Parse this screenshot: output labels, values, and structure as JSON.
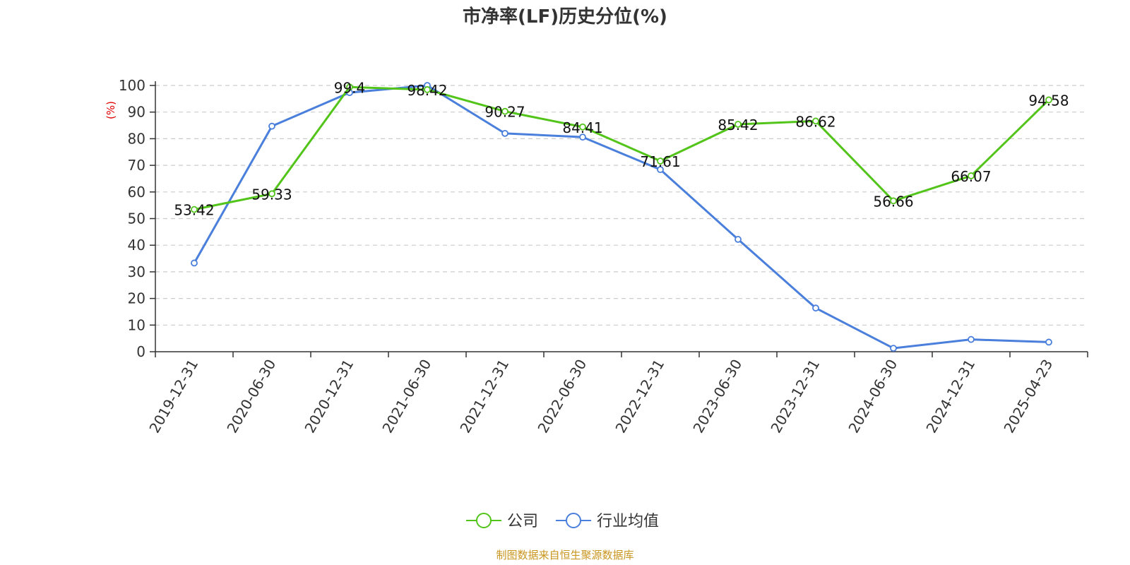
{
  "chart_data": {
    "type": "line",
    "title": "市净率(LF)历史分位(%)",
    "ylabel": "(%)",
    "ylim": [
      0,
      100
    ],
    "yticks": [
      0,
      10,
      20,
      30,
      40,
      50,
      60,
      70,
      80,
      90,
      100
    ],
    "categories": [
      "2019-12-31",
      "2020-06-30",
      "2020-12-31",
      "2021-06-30",
      "2021-12-31",
      "2022-06-30",
      "2022-12-31",
      "2023-06-30",
      "2023-12-31",
      "2024-06-30",
      "2024-12-31",
      "2025-04-23"
    ],
    "series": [
      {
        "name": "公司",
        "color": "#52c41a",
        "values": [
          53.42,
          59.33,
          99.4,
          98.42,
          90.27,
          84.41,
          71.61,
          85.42,
          86.62,
          56.66,
          66.07,
          94.58
        ],
        "labels": [
          "53.42",
          "59.33",
          "99.4",
          "98.42",
          "90.27",
          "84.41",
          "71.61",
          "85.42",
          "86.62",
          "56.66",
          "66.07",
          "94.58"
        ]
      },
      {
        "name": "行业均值",
        "color": "#4a7fdc",
        "values": [
          33.3,
          84.7,
          97.3,
          100,
          82.0,
          80.6,
          68.4,
          42.2,
          16.4,
          1.3,
          4.6,
          3.6
        ]
      }
    ],
    "grid": true,
    "legend_position": "bottom-center"
  },
  "footer": {
    "source": "制图数据来自恒生聚源数据库"
  },
  "colors": {
    "unit_label": "#e00000",
    "source_text": "#c8961e"
  }
}
